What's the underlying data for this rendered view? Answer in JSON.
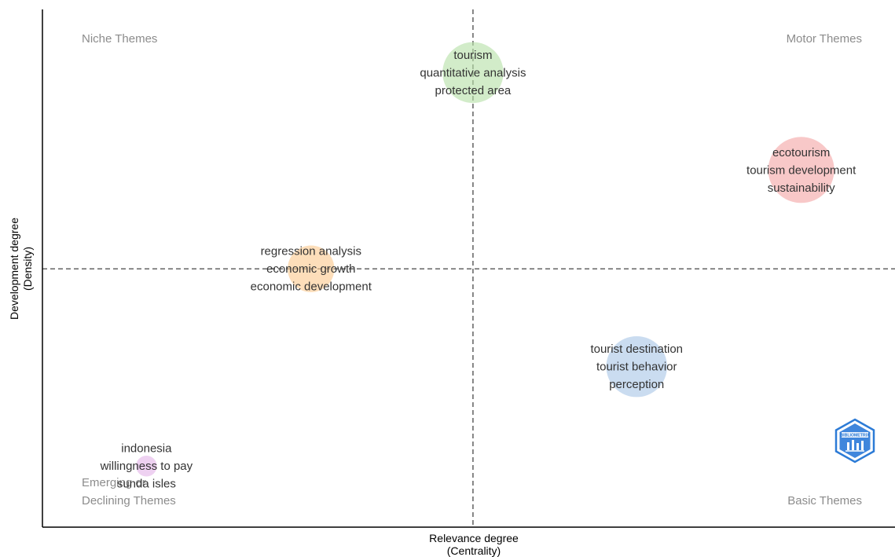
{
  "chart_data": {
    "type": "scatter",
    "title": "",
    "xlabel": [
      "Relevance degree",
      "(Centrality)"
    ],
    "ylabel": [
      "Development degree",
      "(Density)"
    ],
    "xlim": [
      0,
      1
    ],
    "ylim": [
      0,
      1
    ],
    "grid": false,
    "reference_lines": {
      "x": 0.505,
      "y": 0.499
    },
    "quadrants": [
      {
        "name": "niche",
        "label": "Niche Themes",
        "position": "top-left"
      },
      {
        "name": "motor",
        "label": "Motor Themes",
        "position": "top-right"
      },
      {
        "name": "emerging",
        "label": "Emerging or",
        "position": "bottom-left-upper"
      },
      {
        "name": "declining",
        "label": "Declining Themes",
        "position": "bottom-left"
      },
      {
        "name": "basic",
        "label": "Basic Themes",
        "position": "bottom-right"
      }
    ],
    "clusters": [
      {
        "x": 0.505,
        "y": 0.878,
        "size": 0.85,
        "color": "#b6e0a8",
        "labels": [
          "tourism",
          "quantitative analysis",
          "protected area"
        ]
      },
      {
        "x": 0.89,
        "y": 0.69,
        "size": 1.0,
        "color": "#f4a6a6",
        "labels": [
          "ecotourism",
          "tourism development",
          "sustainability"
        ]
      },
      {
        "x": 0.315,
        "y": 0.499,
        "size": 0.5,
        "color": "#fcc98f",
        "labels": [
          "regression analysis",
          "economic growth",
          "economic development"
        ]
      },
      {
        "x": 0.697,
        "y": 0.31,
        "size": 0.85,
        "color": "#a9c6e6",
        "labels": [
          "tourist destination",
          "tourist behavior",
          "perception"
        ]
      },
      {
        "x": 0.122,
        "y": 0.118,
        "size": 0.1,
        "color": "#e3b5e8",
        "labels": [
          "indonesia",
          "willingness to pay",
          "sunda isles"
        ]
      }
    ]
  },
  "logo": {
    "icon": "bibliometrix-logo-icon",
    "text": "BIBLIOMETRIX",
    "color": "#2c7bd6"
  }
}
